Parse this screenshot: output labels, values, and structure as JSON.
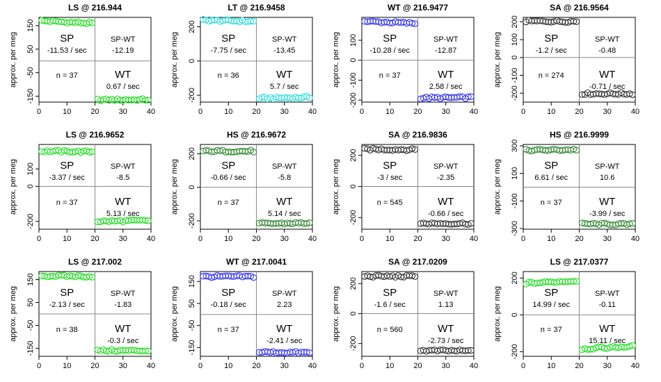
{
  "page": {
    "y_axis_label": "approx. per meg"
  },
  "chart_data": [
    {
      "type": "scatter",
      "title": "LS @ 216.944",
      "color": "#22dd22",
      "xlim": [
        0,
        40
      ],
      "ylim": [
        -175,
        185
      ],
      "yticks": [
        150,
        50,
        -50,
        -150
      ],
      "xticks": [
        0,
        10,
        20,
        30,
        40
      ],
      "sp_level": 165,
      "sp_slope": -11.53,
      "wt_level": -165,
      "wt_slope": 0.67,
      "stats": {
        "sp_label": "SP",
        "sp_rate": "-11.53 / sec",
        "spwt_label": "SP-WT",
        "spwt_value": "-12.19",
        "n_label": "n = 37",
        "wt_label": "WT",
        "wt_rate": "0.67 / sec"
      }
    },
    {
      "type": "scatter",
      "title": "LT @ 216.9458",
      "color": "#33dddd",
      "xlim": [
        0,
        40
      ],
      "ylim": [
        -240,
        255
      ],
      "yticks": [
        200,
        0,
        -200
      ],
      "xticks": [
        0,
        10,
        20,
        30,
        40
      ],
      "sp_level": 235,
      "sp_slope": -7.75,
      "wt_level": -215,
      "wt_slope": 5.7,
      "stats": {
        "sp_label": "SP",
        "sp_rate": "-7.75 / sec",
        "spwt_label": "SP-WT",
        "spwt_value": "-13.45",
        "n_label": "n = 36",
        "wt_label": "WT",
        "wt_rate": "5.7 / sec"
      }
    },
    {
      "type": "scatter",
      "title": "WT @ 216.9477",
      "color": "#3333ee",
      "xlim": [
        0,
        40
      ],
      "ylim": [
        -210,
        215
      ],
      "yticks": [
        100,
        0,
        -100,
        -200
      ],
      "xticks": [
        0,
        10,
        20,
        30,
        40
      ],
      "sp_level": 190,
      "sp_slope": -10.28,
      "wt_level": -188,
      "wt_slope": 2.58,
      "stats": {
        "sp_label": "SP",
        "sp_rate": "-10.28 / sec",
        "spwt_label": "SP-WT",
        "spwt_value": "-12.87",
        "n_label": "n = 37",
        "wt_label": "WT",
        "wt_rate": "2.58 / sec"
      }
    },
    {
      "type": "scatter",
      "title": "SA @ 216.9564",
      "color": "#333333",
      "xlim": [
        0,
        40
      ],
      "ylim": [
        -250,
        225
      ],
      "yticks": [
        200,
        100,
        0,
        -100,
        -200
      ],
      "xticks": [
        0,
        10,
        20,
        30,
        40
      ],
      "sp_level": 203,
      "sp_slope": -1.2,
      "wt_level": -203,
      "wt_slope": -0.71,
      "stats": {
        "sp_label": "SP",
        "sp_rate": "-1.2 / sec",
        "spwt_label": "SP-WT",
        "spwt_value": "-0.48",
        "n_label": "n = 274",
        "wt_label": "WT",
        "wt_rate": "-0.71 / sec"
      }
    },
    {
      "type": "scatter",
      "title": "LS @ 216.9652",
      "color": "#22dd22",
      "xlim": [
        0,
        40
      ],
      "ylim": [
        -245,
        240
      ],
      "yticks": [
        100,
        0,
        -200
      ],
      "xticks": [
        0,
        10,
        20,
        30,
        40
      ],
      "sp_level": 200,
      "sp_slope": -3.37,
      "wt_level": -198,
      "wt_slope": 5.13,
      "stats": {
        "sp_label": "SP",
        "sp_rate": "-3.37 / sec",
        "spwt_label": "SP-WT",
        "spwt_value": "-8.5",
        "n_label": "n = 37",
        "wt_label": "WT",
        "wt_rate": "5.13 / sec"
      }
    },
    {
      "type": "scatter",
      "title": "HS @ 216.9672",
      "color": "#338833",
      "xlim": [
        0,
        40
      ],
      "ylim": [
        -250,
        255
      ],
      "yticks": [
        200,
        0,
        -200
      ],
      "xticks": [
        0,
        10,
        20,
        30,
        40
      ],
      "sp_level": 215,
      "sp_slope": -0.66,
      "wt_level": -215,
      "wt_slope": 5.14,
      "stats": {
        "sp_label": "SP",
        "sp_rate": "-0.66 / sec",
        "spwt_label": "SP-WT",
        "spwt_value": "-5.8",
        "n_label": "n = 37",
        "wt_label": "WT",
        "wt_rate": "5.14 / sec"
      }
    },
    {
      "type": "scatter",
      "title": "SA @ 216.9836",
      "color": "#333333",
      "xlim": [
        0,
        40
      ],
      "ylim": [
        -275,
        270
      ],
      "yticks": [
        200,
        0,
        -200
      ],
      "xticks": [
        0,
        10,
        20,
        30,
        40
      ],
      "sp_level": 238,
      "sp_slope": -3,
      "wt_level": -238,
      "wt_slope": -0.66,
      "stats": {
        "sp_label": "SP",
        "sp_rate": "-3 / sec",
        "spwt_label": "SP-WT",
        "spwt_value": "-2.35",
        "n_label": "n = 545",
        "wt_label": "WT",
        "wt_rate": "-0.66 / sec"
      }
    },
    {
      "type": "scatter",
      "title": "HS @ 216.9999",
      "color": "#338833",
      "xlim": [
        0,
        40
      ],
      "ylim": [
        -305,
        310
      ],
      "yticks": [
        300,
        100,
        -100,
        -300
      ],
      "xticks": [
        0,
        10,
        20,
        30,
        40
      ],
      "sp_level": 270,
      "sp_slope": 6.61,
      "wt_level": -268,
      "wt_slope": -3.99,
      "stats": {
        "sp_label": "SP",
        "sp_rate": "6.61 / sec",
        "spwt_label": "SP-WT",
        "spwt_value": "10.6",
        "n_label": "n = 37",
        "wt_label": "WT",
        "wt_rate": "-3.99 / sec"
      }
    },
    {
      "type": "scatter",
      "title": "LS @ 217.002",
      "color": "#22dd22",
      "xlim": [
        0,
        40
      ],
      "ylim": [
        -185,
        185
      ],
      "yticks": [
        150,
        50,
        -50,
        -150
      ],
      "xticks": [
        0,
        10,
        20,
        30,
        40
      ],
      "sp_level": 165,
      "sp_slope": -2.13,
      "wt_level": -160,
      "wt_slope": -0.3,
      "stats": {
        "sp_label": "SP",
        "sp_rate": "-2.13 / sec",
        "spwt_label": "SP-WT",
        "spwt_value": "-1.83",
        "n_label": "n = 38",
        "wt_label": "WT",
        "wt_rate": "-0.3 / sec"
      }
    },
    {
      "type": "scatter",
      "title": "WT @ 217.0041",
      "color": "#3333ee",
      "xlim": [
        0,
        40
      ],
      "ylim": [
        -190,
        195
      ],
      "yticks": [
        150,
        50,
        -50,
        -150
      ],
      "xticks": [
        0,
        10,
        20,
        30,
        40
      ],
      "sp_level": 172,
      "sp_slope": -0.18,
      "wt_level": -172,
      "wt_slope": -2.41,
      "stats": {
        "sp_label": "SP",
        "sp_rate": "-0.18 / sec",
        "spwt_label": "SP-WT",
        "spwt_value": "2.23",
        "n_label": "n = 37",
        "wt_label": "WT",
        "wt_rate": "-2.41 / sec"
      }
    },
    {
      "type": "scatter",
      "title": "SA @ 217.0209",
      "color": "#333333",
      "xlim": [
        0,
        40
      ],
      "ylim": [
        -285,
        280
      ],
      "yticks": [
        200,
        0,
        -200
      ],
      "xticks": [
        0,
        10,
        20,
        30,
        40
      ],
      "sp_level": 248,
      "sp_slope": -1.6,
      "wt_level": -248,
      "wt_slope": -2.73,
      "stats": {
        "sp_label": "SP",
        "sp_rate": "-1.6 / sec",
        "spwt_label": "SP-WT",
        "spwt_value": "1.13",
        "n_label": "n = 560",
        "wt_label": "WT",
        "wt_rate": "-2.73 / sec"
      }
    },
    {
      "type": "scatter",
      "title": "LS @ 217.0377",
      "color": "#22dd22",
      "xlim": [
        0,
        40
      ],
      "ylim": [
        -225,
        235
      ],
      "yticks": [
        200,
        0,
        -200
      ],
      "xticks": [
        0,
        10,
        20,
        30,
        40
      ],
      "sp_level": 178,
      "sp_slope": 14.99,
      "wt_level": -178,
      "wt_slope": 15.11,
      "stats": {
        "sp_label": "SP",
        "sp_rate": "14.99 / sec",
        "spwt_label": "SP-WT",
        "spwt_value": "-0.11",
        "n_label": "n = 37",
        "wt_label": "WT",
        "wt_rate": "15.11 / sec"
      }
    }
  ]
}
